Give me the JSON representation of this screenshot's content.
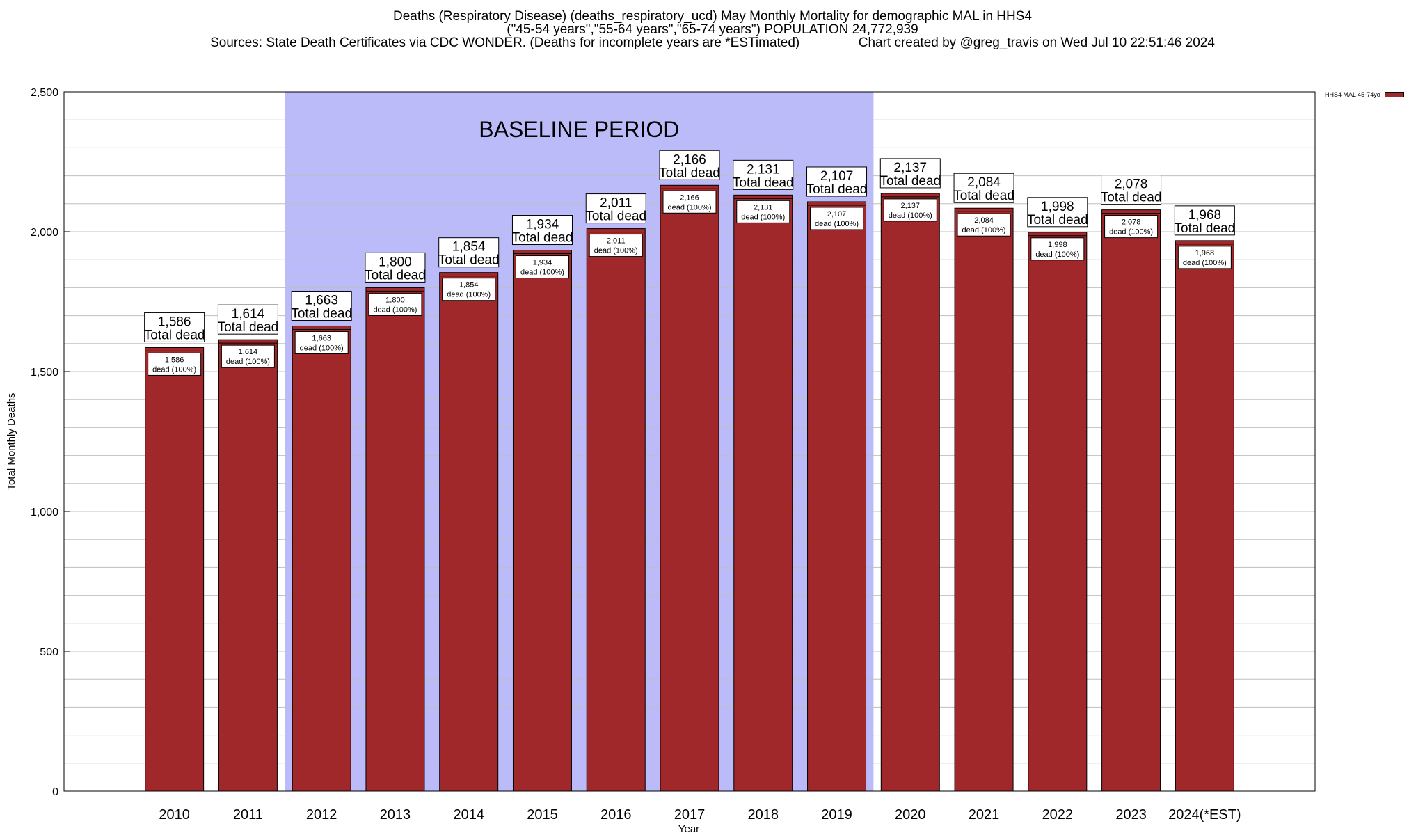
{
  "title_lines": [
    "Deaths (Respiratory Disease) (deaths_respiratory_ucd) May Monthly Mortality for demographic MAL in HHS4",
    "(\"45-54 years\",\"55-64 years\",\"65-74 years\") POPULATION 24,772,939",
    "Sources: State Death Certificates via CDC WONDER. (Deaths for incomplete years are *ESTimated)                Chart created by @greg_travis on Wed Jul 10 22:51:46 2024"
  ],
  "colors": {
    "bar": "#A0282A",
    "baseline_band": "#BBBBFA",
    "grid": "#BFBFBF"
  },
  "chart_data": {
    "type": "bar",
    "categories": [
      "2010",
      "2011",
      "2012",
      "2013",
      "2014",
      "2015",
      "2016",
      "2017",
      "2018",
      "2019",
      "2020",
      "2021",
      "2022",
      "2023",
      "2024(*EST)"
    ],
    "values": [
      1586,
      1614,
      1663,
      1800,
      1854,
      1934,
      2011,
      2166,
      2131,
      2107,
      2137,
      2084,
      1998,
      2078,
      1968
    ],
    "series": [
      {
        "name": "HHS4 MAL 45-74yo",
        "values": [
          1586,
          1614,
          1663,
          1800,
          1854,
          1934,
          2011,
          2166,
          2131,
          2107,
          2137,
          2084,
          1998,
          2078,
          1968
        ]
      }
    ],
    "value_labels": [
      "1,586",
      "1,614",
      "1,663",
      "1,800",
      "1,854",
      "1,934",
      "2,011",
      "2,166",
      "2,131",
      "2,107",
      "2,137",
      "2,084",
      "1,998",
      "2,078",
      "1,968"
    ],
    "top_label_suffix": "Total dead",
    "inner_label_suffix": "dead (100%)",
    "xlabel": "Year",
    "ylabel": "Total Monthly Deaths",
    "ylim": [
      0,
      2500
    ],
    "yticks": [
      0,
      500,
      1000,
      1500,
      2000,
      2500
    ],
    "ytick_labels": [
      "0",
      "500",
      "1,000",
      "1,500",
      "2,000",
      "2,500"
    ],
    "baseline_period": {
      "label": "BASELINE PERIOD",
      "start": "2012",
      "end": "2019"
    },
    "legend_position": "top-right",
    "grid": true
  }
}
